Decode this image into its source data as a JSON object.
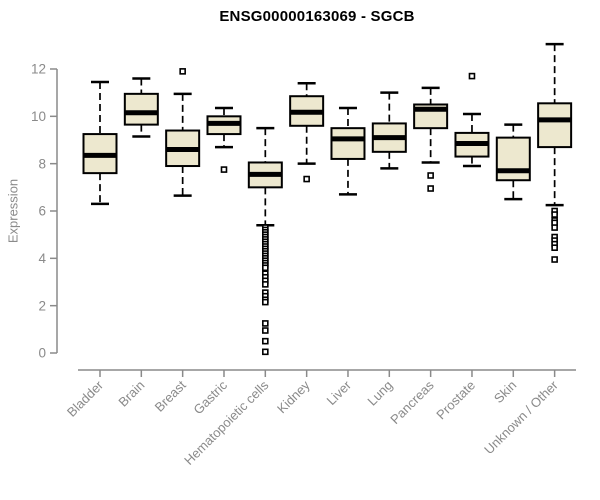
{
  "chart_data": {
    "type": "boxplot",
    "title": "ENSG00000163069 - SGCB",
    "ylabel": "Expression",
    "xlabel": "",
    "ylim": [
      0,
      13.2
    ],
    "yticks": [
      0,
      2,
      4,
      6,
      8,
      10,
      12
    ],
    "grid": false,
    "legend": "none",
    "categories": [
      "Bladder",
      "Brain",
      "Breast",
      "Gastric",
      "Hematopoietic cells",
      "Kidney",
      "Liver",
      "Lung",
      "Pancreas",
      "Prostate",
      "Skin",
      "Unknown / Other"
    ],
    "series": [
      {
        "label": "Bladder",
        "whislo": 6.3,
        "q1": 7.6,
        "med": 8.35,
        "q3": 9.25,
        "whishi": 11.45,
        "outliers": []
      },
      {
        "label": "Brain",
        "whislo": 9.15,
        "q1": 9.65,
        "med": 10.15,
        "q3": 10.95,
        "whishi": 11.6,
        "outliers": []
      },
      {
        "label": "Breast",
        "whislo": 6.65,
        "q1": 7.9,
        "med": 8.6,
        "q3": 9.4,
        "whishi": 10.95,
        "outliers": [
          11.9
        ]
      },
      {
        "label": "Gastric",
        "whislo": 8.7,
        "q1": 9.25,
        "med": 9.7,
        "q3": 10.0,
        "whishi": 10.35,
        "outliers": [
          7.75
        ]
      },
      {
        "label": "Hematopoietic cells",
        "whislo": 5.4,
        "q1": 7.0,
        "med": 7.55,
        "q3": 8.05,
        "whishi": 9.5,
        "outliers": [
          5.3,
          5.2,
          5.1,
          5.0,
          4.9,
          4.8,
          4.7,
          4.6,
          4.5,
          4.4,
          4.3,
          4.2,
          4.1,
          4.0,
          3.9,
          3.8,
          3.7,
          3.6,
          3.35,
          3.2,
          3.05,
          2.9,
          2.55,
          2.4,
          2.25,
          2.15,
          1.25,
          0.95,
          0.5,
          0.05
        ]
      },
      {
        "label": "Kidney",
        "whislo": 8.0,
        "q1": 9.6,
        "med": 10.17,
        "q3": 10.85,
        "whishi": 11.4,
        "outliers": [
          7.35
        ]
      },
      {
        "label": "Liver",
        "whislo": 6.7,
        "q1": 8.2,
        "med": 9.05,
        "q3": 9.5,
        "whishi": 10.35,
        "outliers": []
      },
      {
        "label": "Lung",
        "whislo": 7.8,
        "q1": 8.5,
        "med": 9.1,
        "q3": 9.7,
        "whishi": 11.0,
        "outliers": []
      },
      {
        "label": "Pancreas",
        "whislo": 8.05,
        "q1": 9.5,
        "med": 10.3,
        "q3": 10.5,
        "whishi": 11.2,
        "outliers": [
          7.5,
          6.95
        ]
      },
      {
        "label": "Prostate",
        "whislo": 7.9,
        "q1": 8.3,
        "med": 8.85,
        "q3": 9.3,
        "whishi": 10.1,
        "outliers": [
          11.7
        ]
      },
      {
        "label": "Skin",
        "whislo": 6.5,
        "q1": 7.3,
        "med": 7.7,
        "q3": 9.1,
        "whishi": 9.65,
        "outliers": []
      },
      {
        "label": "Unknown / Other",
        "whislo": 6.25,
        "q1": 8.7,
        "med": 9.85,
        "q3": 10.55,
        "whishi": 13.05,
        "outliers": [
          6.0,
          5.85,
          5.6,
          5.5,
          5.3,
          4.9,
          4.75,
          4.6,
          4.45,
          3.95
        ]
      }
    ],
    "colors": {
      "box_fill": "#EDE8CF",
      "box_stroke": "#000000",
      "median": "#000000",
      "whisker": "#000000",
      "outlier_stroke": "#000000",
      "outlier_fill": "#ffffff",
      "axis": "#8a8a8a",
      "tick_label": "#8a8a8a",
      "title": "#000000",
      "background": "#ffffff"
    }
  }
}
